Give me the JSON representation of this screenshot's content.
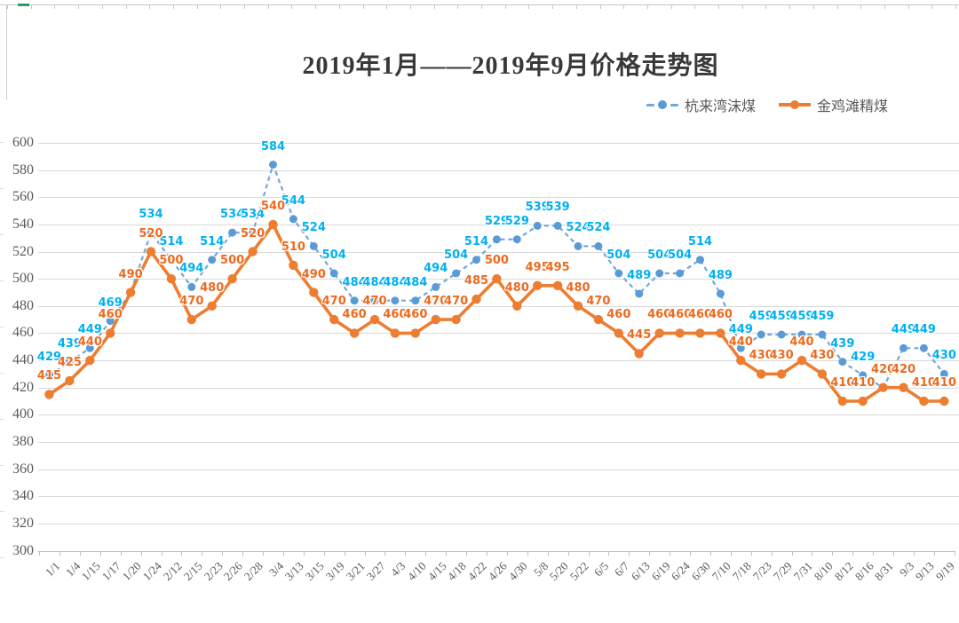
{
  "title": "2019年1月——2019年9月价格走势图",
  "legend": {
    "items": [
      {
        "label": "杭来湾沫煤",
        "line_color": "#74a7da",
        "marker_color": "#5b9bd5",
        "style": "dashed"
      },
      {
        "label": "金鸡滩精煤",
        "line_color": "#ed7d31",
        "marker_color": "#ed7d31",
        "style": "solid"
      }
    ]
  },
  "chart_data": {
    "type": "line",
    "title": "2019年1月——2019年9月价格走势图",
    "categories": [
      "1/1",
      "1/4",
      "1/15",
      "1/17",
      "1/20",
      "1/24",
      "2/12",
      "2/15",
      "2/23",
      "2/26",
      "2/28",
      "3/4",
      "3/13",
      "3/15",
      "3/19",
      "3/21",
      "3/27",
      "4/3",
      "4/10",
      "4/15",
      "4/18",
      "4/22",
      "4/26",
      "4/30",
      "5/8",
      "5/20",
      "5/22",
      "6/5",
      "6/7",
      "6/13",
      "6/19",
      "6/24",
      "6/30",
      "7/10",
      "7/18",
      "7/23",
      "7/29",
      "7/31",
      "8/10",
      "8/12",
      "8/16",
      "8/31",
      "9/3",
      "9/13",
      "9/19"
    ],
    "series": [
      {
        "name": "杭来湾沫煤",
        "style": "dashed",
        "line_color": "#74a7da",
        "marker_color": "#5b9bd5",
        "label_color": "#00b0f0",
        "values": [
          429,
          439,
          449,
          469,
          490,
          534,
          514,
          494,
          514,
          534,
          534,
          584,
          544,
          524,
          504,
          484,
          484,
          484,
          484,
          494,
          504,
          514,
          529,
          529,
          539,
          539,
          524,
          524,
          504,
          489,
          504,
          504,
          514,
          489,
          449,
          459,
          459,
          459,
          459,
          439,
          429,
          420,
          449,
          449,
          430
        ]
      },
      {
        "name": "金鸡滩精煤",
        "style": "solid",
        "line_color": "#ed7d31",
        "marker_color": "#ed7d31",
        "label_color": "#ed6a1f",
        "values": [
          415,
          425,
          440,
          460,
          490,
          520,
          500,
          470,
          480,
          500,
          520,
          540,
          510,
          490,
          470,
          460,
          470,
          460,
          460,
          470,
          470,
          485,
          500,
          480,
          495,
          495,
          480,
          470,
          460,
          445,
          460,
          460,
          460,
          460,
          440,
          430,
          430,
          440,
          430,
          410,
          410,
          420,
          420,
          410,
          410
        ]
      }
    ],
    "ylim": [
      300,
      600
    ],
    "yticks": [
      600,
      580,
      560,
      540,
      520,
      500,
      480,
      460,
      440,
      420,
      400,
      380,
      360,
      340,
      320,
      300
    ],
    "grid": true,
    "legend_position": "top-right",
    "data_labels": true
  }
}
